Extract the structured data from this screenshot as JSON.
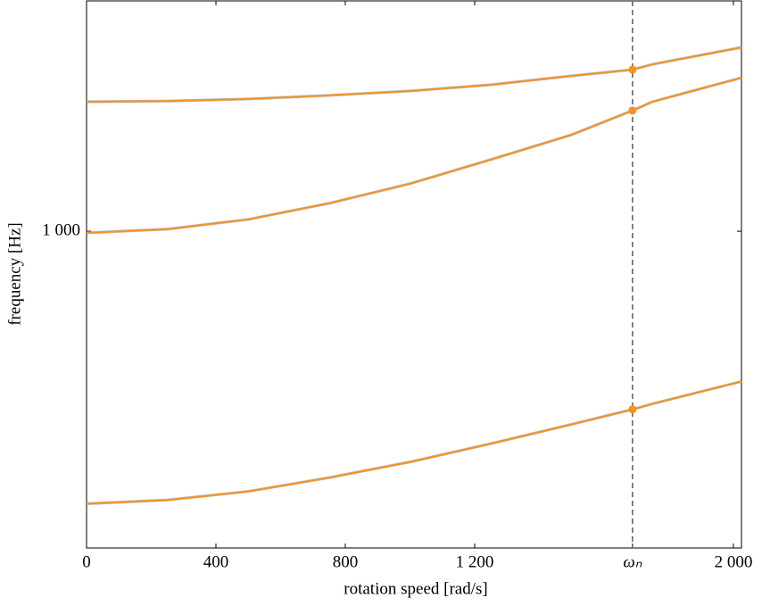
{
  "chart_data": {
    "type": "line",
    "x_label": "rotation speed [rad/s]",
    "y_label": "frequency [Hz]",
    "x": [
      0,
      250,
      500,
      750,
      1000,
      1250,
      1500,
      1688,
      1750,
      2025
    ],
    "series": [
      {
        "color": "#f39325",
        "values": [
          1636,
          1640,
          1653,
          1676,
          1704,
          1745,
          1805,
          1848,
          1886,
          2011
        ]
      },
      {
        "color": "#f39325",
        "values": [
          994,
          1008,
          1046,
          1112,
          1198,
          1313,
          1443,
          1582,
          1636,
          1792
        ]
      },
      {
        "color": "#f39325",
        "values": [
          355,
          360,
          372,
          392,
          416,
          446,
          480,
          508,
          519,
          565
        ]
      }
    ],
    "xlim": [
      0,
      2025
    ],
    "ylim": [
      300,
      2400
    ],
    "y_scale": "log",
    "xticks": [
      0,
      400,
      800,
      {
        "value": 1200,
        "label": "1 200"
      },
      {
        "value": 1688,
        "label": "ωₙ"
      },
      {
        "value": 2000,
        "label": "2 000"
      }
    ],
    "yticks": [
      {
        "value": 1000,
        "label": "1 000"
      }
    ],
    "vline": 1688,
    "vline_color": "#666666"
  }
}
